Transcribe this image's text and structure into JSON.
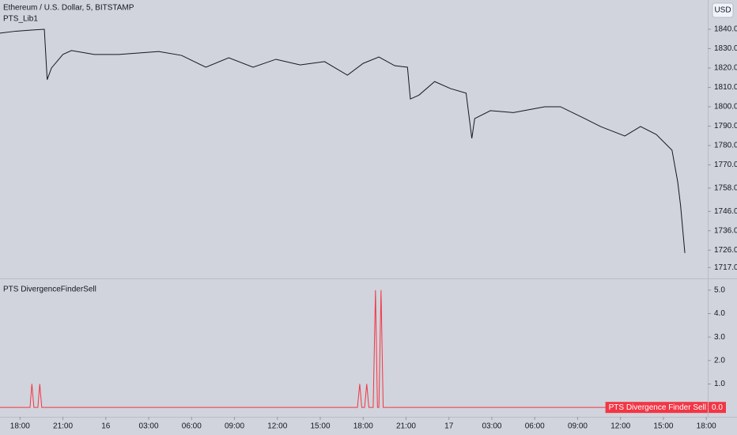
{
  "chart_data": [
    {
      "type": "line",
      "title": "Ethereum / U.S. Dollar, 5, BITSTAMP",
      "subtitle": "PTS_Lib1",
      "unit_button": "USD",
      "color": "#131722",
      "x": [
        -1.4,
        -0.3,
        0.8,
        1.7,
        1.9,
        2.2,
        3.0,
        3.6,
        5.2,
        6.9,
        9.7,
        11.3,
        13.0,
        14.6,
        16.3,
        17.9,
        19.6,
        21.3,
        22.9,
        24.0,
        25.1,
        26.2,
        27.1,
        27.3,
        27.9,
        29.0,
        30.1,
        31.2,
        31.6,
        31.8,
        32.9,
        34.5,
        36.7,
        37.8,
        39.5,
        40.6,
        42.3,
        43.4,
        44.5,
        45.6,
        46.0,
        46.2,
        46.5
      ],
      "values": [
        1838,
        1839,
        1839.6,
        1840,
        1814,
        1820,
        1827,
        1829,
        1827,
        1827,
        1828.5,
        1826.5,
        1820.4,
        1825.3,
        1820.4,
        1824.5,
        1821.6,
        1823.3,
        1816.3,
        1822.4,
        1825.7,
        1821.2,
        1820.4,
        1804,
        1806,
        1813,
        1809.4,
        1807,
        1783.7,
        1793.9,
        1798,
        1797,
        1800,
        1800,
        1793.9,
        1789.8,
        1784.9,
        1789.8,
        1785.7,
        1777.6,
        1761.2,
        1749,
        1724.5
      ],
      "xlim": [
        -1.4,
        48.1
      ],
      "ylim": [
        1711.4,
        1855.1
      ],
      "yticks": [
        {
          "value": 1840,
          "label": "1840.0"
        },
        {
          "value": 1830,
          "label": "1830.0"
        },
        {
          "value": 1820,
          "label": "1820.0"
        },
        {
          "value": 1810,
          "label": "1810.0"
        },
        {
          "value": 1800,
          "label": "1800.0"
        },
        {
          "value": 1790,
          "label": "1790.0"
        },
        {
          "value": 1780,
          "label": "1780.0"
        },
        {
          "value": 1770,
          "label": "1770.0"
        },
        {
          "value": 1758,
          "label": "1758.0"
        },
        {
          "value": 1746,
          "label": "1746.0"
        },
        {
          "value": 1736,
          "label": "1736.0"
        },
        {
          "value": 1726,
          "label": "1726.0"
        },
        {
          "value": 1717,
          "label": "1717.0"
        }
      ]
    },
    {
      "type": "line",
      "title": "PTS DivergenceFinderSell",
      "x": [
        -1.4,
        0.7,
        0.83,
        0.97,
        1.25,
        1.38,
        1.52,
        23.6,
        23.76,
        23.9,
        24.1,
        24.25,
        24.4,
        24.7,
        24.86,
        25.0,
        25.1,
        25.25,
        25.4,
        47.9
      ],
      "series": [
        {
          "name": "PTS Divergence Finder Sell",
          "color": "#f23645",
          "values": [
            0,
            0,
            1,
            0,
            0,
            1,
            0,
            0,
            1,
            0,
            0,
            1,
            0,
            0,
            5,
            0,
            0,
            5,
            0,
            0
          ]
        }
      ],
      "last_tag": {
        "value": 0,
        "label": "0.0"
      },
      "xlim": [
        -1.4,
        48.1
      ],
      "ylim": [
        -0.4,
        5.5
      ],
      "yticks": [
        {
          "value": 5,
          "label": "5.0"
        },
        {
          "value": 4,
          "label": "4.0"
        },
        {
          "value": 3,
          "label": "3.0"
        },
        {
          "value": 2,
          "label": "2.0"
        },
        {
          "value": 1,
          "label": "1.0"
        },
        {
          "value": 0,
          "label": "0.0"
        }
      ],
      "xticks": [
        {
          "value": 0,
          "label": "18:00"
        },
        {
          "value": 3,
          "label": "21:00"
        },
        {
          "value": 6,
          "label": "16"
        },
        {
          "value": 9,
          "label": "03:00"
        },
        {
          "value": 12,
          "label": "06:00"
        },
        {
          "value": 15,
          "label": "09:00"
        },
        {
          "value": 18,
          "label": "12:00"
        },
        {
          "value": 21,
          "label": "15:00"
        },
        {
          "value": 24,
          "label": "18:00"
        },
        {
          "value": 27,
          "label": "21:00"
        },
        {
          "value": 30,
          "label": "17"
        },
        {
          "value": 33,
          "label": "03:00"
        },
        {
          "value": 36,
          "label": "06:00"
        },
        {
          "value": 39,
          "label": "09:00"
        },
        {
          "value": 42,
          "label": "12:00"
        },
        {
          "value": 45,
          "label": "15:00"
        },
        {
          "value": 48,
          "label": "18:00"
        }
      ]
    }
  ]
}
